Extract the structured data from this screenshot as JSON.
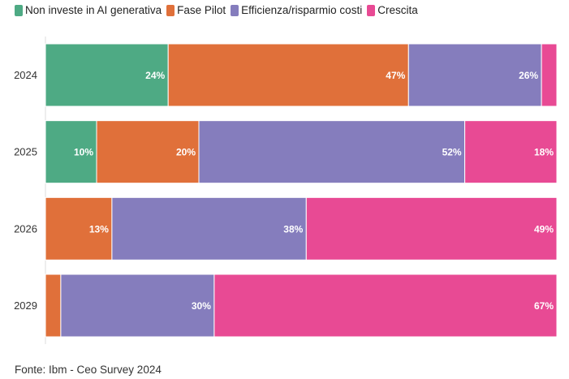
{
  "chart_data": {
    "type": "bar",
    "orientation": "horizontal",
    "stacked": true,
    "categories": [
      "2024",
      "2025",
      "2026",
      "2029"
    ],
    "series": [
      {
        "name": "Non investe in AI generativa",
        "color": "#4eaa84",
        "values": [
          24,
          10,
          0,
          0
        ]
      },
      {
        "name": "Fase Pilot",
        "color": "#e0703a",
        "values": [
          47,
          20,
          13,
          3
        ]
      },
      {
        "name": "Efficienza/risparmio costi",
        "color": "#857dbd",
        "values": [
          26,
          52,
          38,
          30
        ]
      },
      {
        "name": "Crescita",
        "color": "#e84a94",
        "values": [
          3,
          18,
          49,
          67
        ]
      }
    ],
    "data_labels": [
      [
        "24%",
        "47%",
        "26%",
        ""
      ],
      [
        "10%",
        "20%",
        "52%",
        "18%"
      ],
      [
        "",
        "13%",
        "38%",
        "49%"
      ],
      [
        "",
        "",
        "30%",
        "67%"
      ]
    ],
    "xlim": [
      0,
      100
    ],
    "grid": false,
    "legend_position": "top-left"
  },
  "source": "Fonte: Ibm - Ceo Survey 2024"
}
